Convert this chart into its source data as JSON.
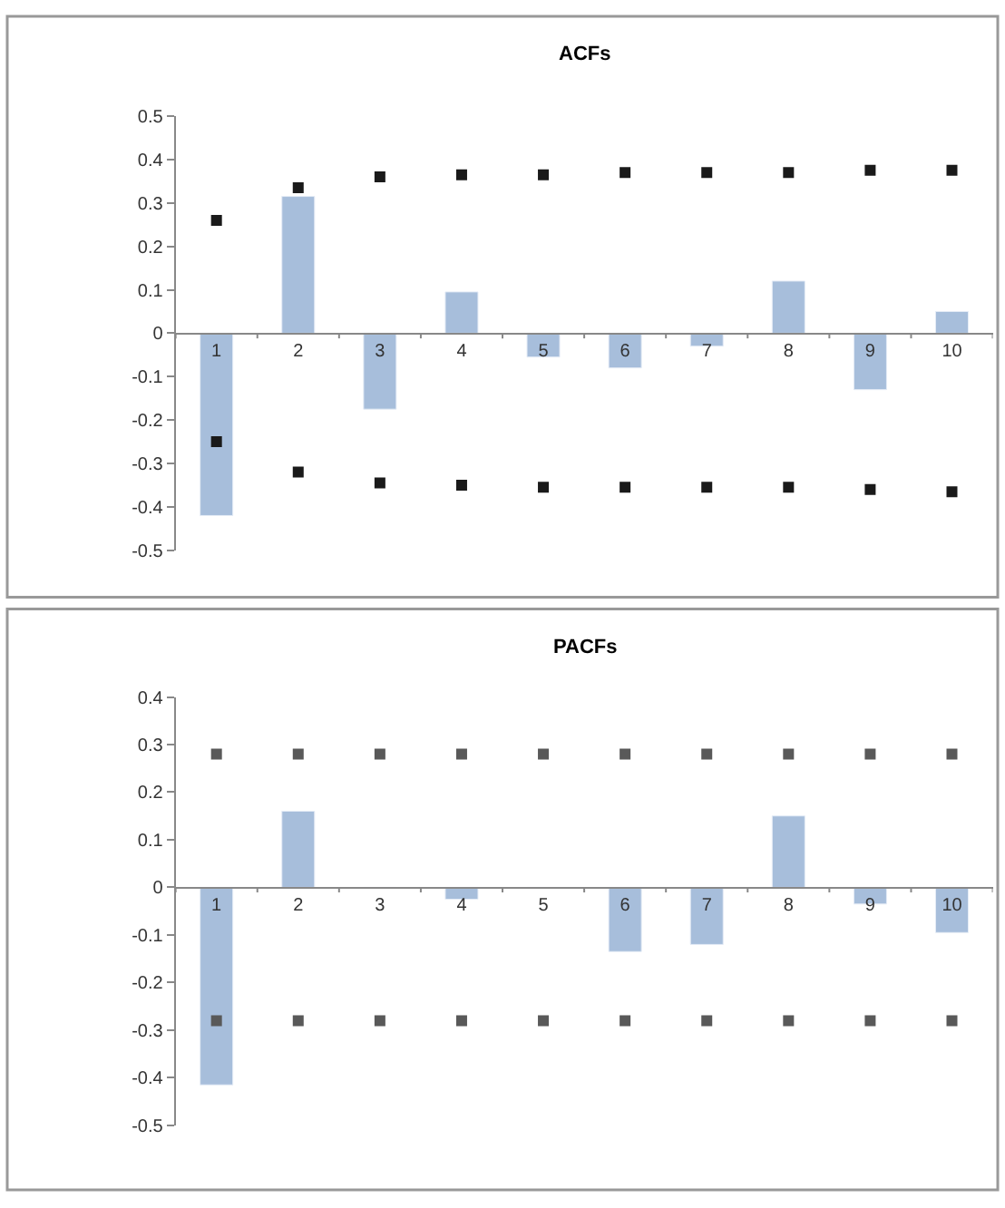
{
  "chart_data": [
    {
      "type": "bar",
      "title": "ACFs",
      "categories": [
        "1",
        "2",
        "3",
        "4",
        "5",
        "6",
        "7",
        "8",
        "9",
        "10"
      ],
      "ylim": [
        -0.5,
        0.5
      ],
      "yticks": [
        -0.5,
        -0.4,
        -0.3,
        -0.2,
        -0.1,
        0,
        0.1,
        0.2,
        0.3,
        0.4,
        0.5
      ],
      "grid": false,
      "marker": "square",
      "series": [
        {
          "color": "#a7bedb",
          "values": [
            -0.42,
            0.315,
            -0.175,
            0.095,
            -0.055,
            -0.08,
            -0.03,
            0.12,
            -0.13,
            0.05
          ]
        },
        {
          "type": "scatter",
          "x": [
            "1",
            "2",
            "3",
            "4",
            "5",
            "6",
            "7",
            "8",
            "9",
            "10"
          ],
          "color": "#1a1a1a",
          "values": [
            0.26,
            0.335,
            0.36,
            0.365,
            0.365,
            0.37,
            0.37,
            0.37,
            0.375,
            0.375
          ]
        },
        {
          "type": "scatter",
          "x": [
            "1",
            "2",
            "3",
            "4",
            "5",
            "6",
            "7",
            "8",
            "9",
            "10"
          ],
          "color": "#1a1a1a",
          "values": [
            -0.25,
            -0.32,
            -0.345,
            -0.35,
            -0.355,
            -0.355,
            -0.355,
            -0.355,
            -0.36,
            -0.365
          ]
        }
      ]
    },
    {
      "type": "bar",
      "title": "PACFs",
      "categories": [
        "1",
        "2",
        "3",
        "4",
        "5",
        "6",
        "7",
        "8",
        "9",
        "10"
      ],
      "ylim": [
        -0.5,
        0.4
      ],
      "yticks": [
        -0.5,
        -0.4,
        -0.3,
        -0.2,
        -0.1,
        0,
        0.1,
        0.2,
        0.3,
        0.4
      ],
      "grid": false,
      "marker": "square",
      "series": [
        {
          "color": "#a7bedb",
          "values": [
            -0.415,
            0.16,
            -0.002,
            -0.025,
            -0.002,
            -0.135,
            -0.12,
            0.15,
            -0.035,
            -0.095
          ]
        },
        {
          "type": "scatter",
          "x": [
            "1",
            "2",
            "3",
            "4",
            "5",
            "6",
            "7",
            "8",
            "9",
            "10"
          ],
          "color": "#595959",
          "values": [
            0.28,
            0.28,
            0.28,
            0.28,
            0.28,
            0.28,
            0.28,
            0.28,
            0.28,
            0.28
          ]
        },
        {
          "type": "scatter",
          "x": [
            "1",
            "2",
            "3",
            "4",
            "5",
            "6",
            "7",
            "8",
            "9",
            "10"
          ],
          "color": "#595959",
          "values": [
            -0.28,
            -0.28,
            -0.28,
            -0.28,
            -0.28,
            -0.28,
            -0.28,
            -0.28,
            -0.28,
            -0.28
          ]
        }
      ]
    }
  ]
}
